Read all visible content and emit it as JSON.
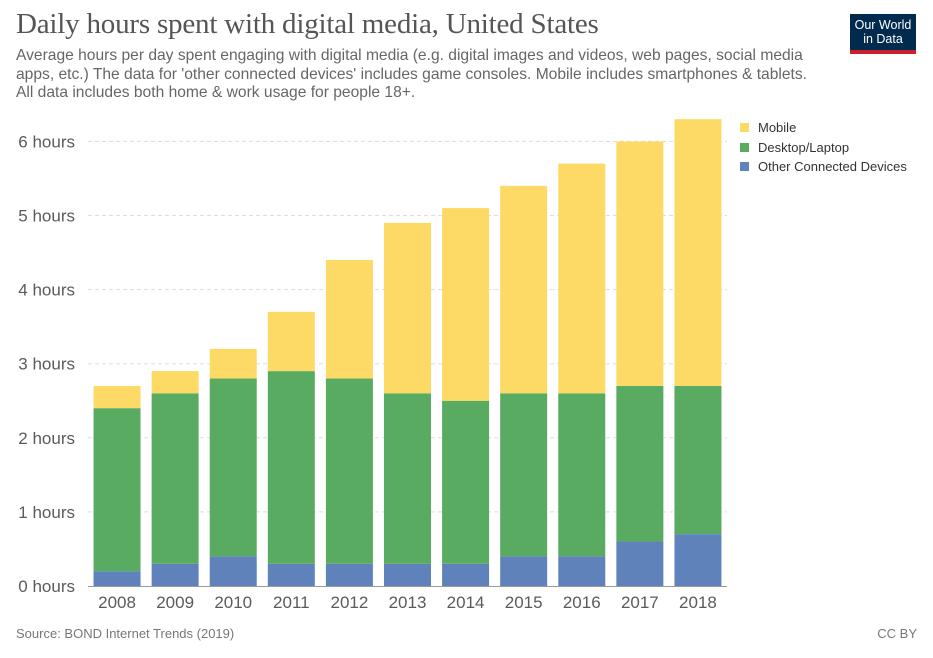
{
  "header": {
    "title": "Daily hours spent with digital media, United States",
    "subtitle": "Average hours per day spent engaging with digital media (e.g. digital images and videos, web pages, social media apps, etc.) The data for 'other connected devices' includes game consoles. Mobile includes smartphones & tablets. All data includes both home & work usage for people 18+.",
    "logo_line1": "Our World",
    "logo_line2": "in Data"
  },
  "footer": {
    "source": "Source: BOND Internet Trends (2019)",
    "license": "CC BY"
  },
  "colors": {
    "mobile": "#fdd966",
    "desktop": "#5aab62",
    "other": "#5f82ba",
    "grid": "#dddddd",
    "axis_text": "#5b5b5b"
  },
  "chart_data": {
    "type": "bar",
    "stacked": true,
    "categories": [
      "2008",
      "2009",
      "2010",
      "2011",
      "2012",
      "2013",
      "2014",
      "2015",
      "2016",
      "2017",
      "2018"
    ],
    "series": [
      {
        "name": "Other Connected Devices",
        "color": "#5f82ba",
        "values": [
          0.2,
          0.3,
          0.4,
          0.3,
          0.3,
          0.3,
          0.3,
          0.4,
          0.4,
          0.6,
          0.7
        ]
      },
      {
        "name": "Desktop/Laptop",
        "color": "#5aab62",
        "values": [
          2.2,
          2.3,
          2.4,
          2.6,
          2.5,
          2.3,
          2.2,
          2.2,
          2.2,
          2.1,
          2.0
        ]
      },
      {
        "name": "Mobile",
        "color": "#fdd966",
        "values": [
          0.3,
          0.3,
          0.4,
          0.8,
          1.6,
          2.3,
          2.6,
          2.8,
          3.1,
          3.3,
          3.6
        ]
      }
    ],
    "legend": [
      {
        "name": "Mobile",
        "color": "#fdd966"
      },
      {
        "name": "Desktop/Laptop",
        "color": "#5aab62"
      },
      {
        "name": "Other Connected Devices",
        "color": "#5f82ba"
      }
    ],
    "y_ticks": [
      0,
      1,
      2,
      3,
      4,
      5,
      6
    ],
    "y_tick_suffix": " hours",
    "ylim": [
      0,
      6.5
    ],
    "grid": true,
    "legend_position": "top-right"
  }
}
